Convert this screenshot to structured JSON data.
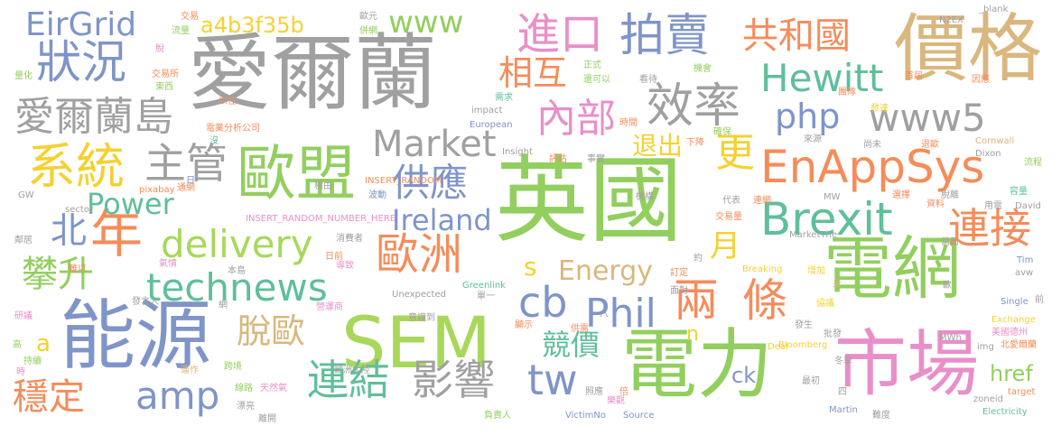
{
  "palette": {
    "gray": "#a0a0a0",
    "green": "#92cf5e",
    "blue": "#7f95c8",
    "orange": "#f58c5a",
    "pink": "#e88fc9",
    "yellow": "#f5d130",
    "teal": "#5fbf9a",
    "tan": "#d9b77e",
    "lightgreen": "#a8d85a"
  },
  "words": [
    "愛爾蘭",
    "英國",
    "價格",
    "電網",
    "能源",
    "電力",
    "市場",
    "SEM",
    "歐盟",
    "EnAppSys",
    "狀況",
    "EirGrid",
    "愛爾蘭島",
    "系統",
    "主管",
    "年",
    "北",
    "攀升",
    "穩定",
    "amp",
    "technews",
    "delivery",
    "Power",
    "Market",
    "供應",
    "Ireland",
    "歐洲",
    "連結",
    "影響",
    "拍賣",
    "進口",
    "相互",
    "內部",
    "效率",
    "php",
    "www",
    "a4b3f35b",
    "共和國",
    "Hewitt",
    "www5",
    "Brexit",
    "連接",
    "更",
    "兩",
    "條",
    "Phil",
    "cb",
    "tw",
    "競價",
    "退出",
    "s",
    "Energy",
    "月",
    "href",
    "ck",
    "n",
    "脫歐",
    "a",
    "交易",
    "流量",
    "脫",
    "量化",
    "交易所",
    "東西",
    "歐元",
    "併網",
    "N2EX",
    "_blank",
    "正式",
    "還可以",
    "看待",
    "機會",
    "需求",
    "impact",
    "European",
    "Insight",
    "評估",
    "事實",
    "時間",
    "確保",
    "團隊",
    "首屆",
    "因應",
    "發達",
    "下降",
    "來源",
    "尚未",
    "退歐",
    "Cornwall",
    "流程",
    "Dixon",
    "容量",
    "David",
    "用電",
    "脫離",
    "資料",
    "選擇",
    "當局",
    "Tim",
    "avw",
    "前",
    "Single",
    "Exchange",
    "美國德州",
    "北愛爾蘭",
    "img",
    "target",
    "Electricity",
    "zoneid",
    "Martin",
    "難度",
    "冬季",
    "MWh",
    "Bloomberg",
    "Deal",
    "最初",
    "四",
    "協議",
    "批發",
    "發生",
    "歐",
    "身",
    "增加",
    "Breaking",
    "MarketThe",
    "MW",
    "機構",
    "代表",
    "連網",
    "交易量",
    "約",
    "訂定",
    "面對",
    "倍",
    "樂觀",
    "Source",
    "VictimNo",
    "照應",
    "供需",
    "八",
    "顯示",
    "Greenlink",
    "單一",
    "Unexpected",
    "意識到",
    "營運商",
    "INSERT_RANDOM_NUMBER_HERE",
    "INSERT_RANDOM",
    "波動",
    "日前",
    "導致",
    "消費者",
    "通網",
    "標由",
    "沒",
    "電業分析公司",
    "以往",
    "日",
    "pixabay",
    "sector",
    "GW",
    "鄰居",
    "難以",
    "氣憤",
    "本島",
    "網",
    "研議",
    "發言人",
    "高",
    "持續",
    "時",
    "跨境",
    "運作",
    "天然氣",
    "線路",
    "漂亮",
    "離開",
    "負責人",
    "歐洲大陸",
    "src"
  ]
}
